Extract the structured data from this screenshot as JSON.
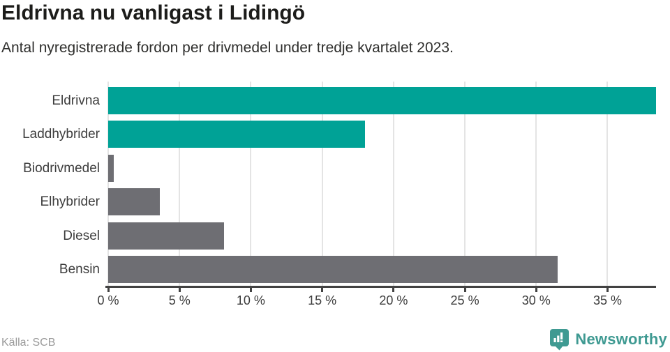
{
  "header": {
    "title": "Eldrivna nu vanligast i Lidingö",
    "subtitle": "Antal nyregistrerade fordon per drivmedel under tredje kvartalet 2023."
  },
  "chart_data": {
    "type": "bar",
    "orientation": "horizontal",
    "title": "Eldrivna nu vanligast i Lidingö",
    "subtitle": "Antal nyregistrerade fordon per drivmedel under tredje kvartalet 2023.",
    "categories": [
      "Eldrivna",
      "Laddhybrider",
      "Biodrivmedel",
      "Elhybrider",
      "Diesel",
      "Bensin"
    ],
    "values": [
      38.4,
      18.0,
      0.4,
      3.6,
      8.1,
      31.5
    ],
    "unit": "%",
    "xlim": [
      0,
      38.4
    ],
    "x_ticks": [
      0,
      5,
      10,
      15,
      20,
      25,
      30,
      35
    ],
    "x_tick_labels": [
      "0 %",
      "5 %",
      "10 %",
      "15 %",
      "20 %",
      "25 %",
      "30 %",
      "35 %"
    ],
    "grid": true,
    "legend": false,
    "highlight_color": "#00a296",
    "default_color": "#6e6e73",
    "bar_colors": [
      "#00a296",
      "#00a296",
      "#6e6e73",
      "#6e6e73",
      "#6e6e73",
      "#6e6e73"
    ]
  },
  "footer": {
    "source": "Källa: SCB",
    "brand": "Newsworthy",
    "brand_color": "#3f9a92",
    "logo_icon": "speech-bubble-bar-chart"
  }
}
